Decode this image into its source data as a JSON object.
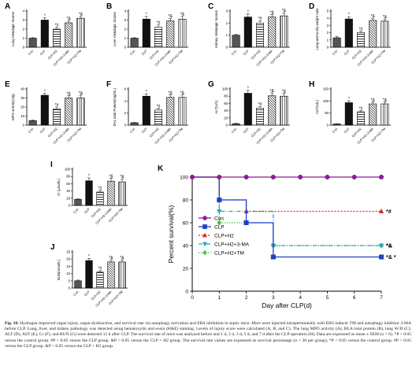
{
  "panels": [
    {
      "letter": "A",
      "ylabel": "Lung Histologic Scores",
      "ylim": [
        0,
        4
      ],
      "yticks": [
        0,
        1,
        2,
        3,
        4
      ],
      "categories": [
        "Con",
        "CLP",
        "CLP+H2",
        "CLP+H2+3-MA",
        "CLP+H2+TM"
      ],
      "values": [
        1.0,
        3.0,
        2.0,
        2.7,
        3.2
      ],
      "errors": [
        0.05,
        0.25,
        0.2,
        0.25,
        0.2
      ],
      "marks": [
        "",
        "*",
        "*#",
        "*&",
        "*&"
      ]
    },
    {
      "letter": "B",
      "ylabel": "Liver Histologic Scores",
      "ylim": [
        0,
        4
      ],
      "yticks": [
        0,
        1,
        2,
        3,
        4
      ],
      "categories": [
        "Con",
        "CLP",
        "CLP+H2",
        "CLP+H2+3-MA",
        "CLP+H2+TM"
      ],
      "values": [
        1.0,
        3.1,
        2.2,
        2.9,
        3.1
      ],
      "errors": [
        0.05,
        0.3,
        0.25,
        0.3,
        0.3
      ],
      "marks": [
        "",
        "*",
        "*#",
        "*&",
        "*&"
      ]
    },
    {
      "letter": "C",
      "ylabel": "Kidney Histologic Scores",
      "ylim": [
        0,
        3
      ],
      "yticks": [
        0,
        1,
        2,
        3
      ],
      "categories": [
        "Con",
        "CLP",
        "CLP+H2",
        "CLP+H2+3-MA",
        "CLP+H2+TM"
      ],
      "values": [
        1.0,
        2.5,
        2.0,
        2.5,
        2.6
      ],
      "errors": [
        0.05,
        0.25,
        0.2,
        0.2,
        0.25
      ],
      "marks": [
        "",
        "*",
        "*#",
        "*&",
        "*&"
      ]
    },
    {
      "letter": "D",
      "ylabel": "Lung wet-to-dry weight ratio",
      "ylim": [
        0,
        5
      ],
      "yticks": [
        0,
        1,
        2,
        3,
        4,
        5
      ],
      "categories": [
        "Con",
        "CLP",
        "CLP+H2",
        "CLP+H2+3-MA",
        "CLP+H2+TM"
      ],
      "values": [
        1.3,
        3.9,
        2.0,
        3.7,
        3.6
      ],
      "errors": [
        0.2,
        0.3,
        0.2,
        0.3,
        0.3
      ],
      "marks": [
        "",
        "*",
        "*#",
        "*&",
        "*&"
      ]
    },
    {
      "letter": "E",
      "ylabel": "MPO activity(U/g)",
      "ylim": [
        0,
        40
      ],
      "yticks": [
        0,
        10,
        20,
        30,
        40
      ],
      "categories": [
        "Con",
        "CLP",
        "CLP+H2",
        "CLP+H2+3-MA",
        "CLP+H2+TM"
      ],
      "values": [
        5,
        33,
        18,
        30,
        30
      ],
      "errors": [
        0.5,
        2,
        2,
        2.5,
        3
      ],
      "marks": [
        "",
        "*",
        "*#",
        "*&",
        "*&"
      ]
    },
    {
      "letter": "F",
      "ylabel": "BAL total Protein(mg/mL)",
      "ylim": [
        0,
        6
      ],
      "yticks": [
        0,
        2,
        4,
        6
      ],
      "categories": [
        "Con",
        "CLP",
        "CLP+H2",
        "CLP+H2+3-MA",
        "CLP+H2+TM"
      ],
      "values": [
        0.4,
        4.8,
        2.5,
        4.6,
        4.6
      ],
      "errors": [
        0.05,
        0.4,
        0.3,
        0.4,
        0.4
      ],
      "marks": [
        "",
        "*",
        "*#",
        "*&",
        "*&"
      ]
    },
    {
      "letter": "G",
      "ylabel": "ALT(U/L)",
      "ylim": [
        0,
        100
      ],
      "yticks": [
        0,
        20,
        40,
        60,
        80,
        100
      ],
      "categories": [
        "Con",
        "CLP",
        "CLP+H2",
        "CLP+H2+3-MA",
        "CLP+H2+TM"
      ],
      "values": [
        4,
        88,
        47,
        81,
        80
      ],
      "errors": [
        1,
        8,
        5,
        8,
        8
      ],
      "marks": [
        "",
        "*",
        "*#",
        "*&",
        "*&"
      ]
    },
    {
      "letter": "H",
      "ylabel": "AST(U/L)",
      "ylim": [
        0,
        150
      ],
      "yticks": [
        0,
        50,
        100,
        150
      ],
      "categories": [
        "Con",
        "CLP",
        "CLP+H2",
        "CLP+H2+3-MA",
        "CLP+H2+TM"
      ],
      "values": [
        5,
        93,
        55,
        88,
        88
      ],
      "errors": [
        1,
        8,
        5,
        8,
        8
      ],
      "marks": [
        "",
        "*",
        "*#",
        "*&",
        "*&"
      ]
    },
    {
      "letter": "I",
      "ylabel": "Cr (μmol/L)",
      "ylim": [
        0,
        100
      ],
      "yticks": [
        0,
        20,
        40,
        60,
        80,
        100
      ],
      "categories": [
        "Con",
        "CLP",
        "CLP+H2",
        "CLP+H2+3-MA",
        "CLP+H2+TM"
      ],
      "values": [
        17,
        68,
        37,
        67,
        65
      ],
      "errors": [
        1,
        8,
        5,
        8,
        8
      ],
      "marks": [
        "",
        "*",
        "*#",
        "*&",
        "*&"
      ]
    },
    {
      "letter": "J",
      "ylabel": "BUN(mmol/L)",
      "ylim": [
        0,
        25
      ],
      "yticks": [
        0,
        5,
        10,
        15,
        20,
        25
      ],
      "categories": [
        "Con",
        "CLP",
        "CLP+H2",
        "CLP+H2+3-MA",
        "CLP+H2+TM"
      ],
      "values": [
        5,
        19,
        11,
        18,
        18
      ],
      "errors": [
        0.5,
        1.5,
        1,
        1.5,
        1.5
      ],
      "marks": [
        "",
        "*",
        "*#",
        "*&",
        "*&"
      ]
    }
  ],
  "survival": {
    "letter": "K",
    "ylabel": "Percent survival(%)",
    "xlabel": "Day after CLP(d)",
    "xlim": [
      0,
      7
    ],
    "xticks": [
      0,
      1,
      2,
      3,
      4,
      5,
      6,
      7
    ],
    "ylim": [
      0,
      100
    ],
    "yticks": [
      0,
      20,
      40,
      60,
      80,
      100
    ],
    "series": [
      {
        "name": "Con",
        "color": "#8a1f8f",
        "dash": "",
        "marker": "circle",
        "points": [
          [
            0,
            100
          ],
          [
            1,
            100
          ],
          [
            2,
            100
          ],
          [
            3,
            100
          ],
          [
            4,
            100
          ],
          [
            5,
            100
          ],
          [
            6,
            100
          ],
          [
            7,
            100
          ]
        ],
        "mark": ""
      },
      {
        "name": "CLP",
        "color": "#1f3fcc",
        "dash": "",
        "marker": "square",
        "points": [
          [
            0,
            100
          ],
          [
            1,
            80
          ],
          [
            2,
            60
          ],
          [
            3,
            30
          ],
          [
            7,
            30
          ]
        ],
        "mark": "*&  *"
      },
      {
        "name": "CLP+H2",
        "color": "#d42a2a",
        "dash": "2,2",
        "marker": "triangle",
        "points": [
          [
            0,
            100
          ],
          [
            1,
            80
          ],
          [
            2,
            70
          ],
          [
            7,
            70
          ]
        ],
        "mark": "*#"
      },
      {
        "name": "CLP+H2+3-MA",
        "color": "#2aa7b8",
        "dash": "5,2,1,2",
        "marker": "tri-down",
        "points": [
          [
            0,
            100
          ],
          [
            1,
            70
          ],
          [
            3,
            40
          ],
          [
            7,
            40
          ]
        ],
        "mark": "*&"
      },
      {
        "name": "CLP+H2+TM",
        "color": "#4fc24f",
        "dash": "1.5,1.5",
        "marker": "diamond",
        "points": [
          [
            0,
            100
          ],
          [
            1,
            60
          ],
          [
            3,
            40
          ],
          [
            7,
            40
          ]
        ],
        "mark": "*&"
      }
    ]
  },
  "caption": {
    "title": "Fig. 10.",
    "text": "Hydrogen improved organ injury, organ dysfunction, and survival rate via autophagy activation and ERS inhibition in septic mice. Mice were injected intraperitoneally with ERS inducer TM and autophagy inhibitor 3-MA before CLP. Lung, liver, and kidney pathology was detected using hematoxylin and eosin (H&E) staining. Levels of injury score were calculated (A, B, and C). The lung MPO activity (A), BLA total protein (B), lung W/D (C), ALT (D), AST (E), Cr (F), and BUN (G) were detected 12 h after CLP. The survival rate of mice was analyzed before and 1 d, 2 d, 3 d, 5 d, and 7 d after the CLP operation (H). Data are expressed as mean ± SEM (n = 6). *P < 0.05 versus the control group. #P < 0.05 versus the CLP group. &P < 0.05 versus the CLP + H2 group. The survival rate values are expressed as survival percentage (n = 20 per group), *P < 0.05 versus the control group. #P < 0.05 versus the CLP group. &P < 0.05 versus the CLP + H2 group."
  },
  "colors": {
    "bar_fill": "#ffffff",
    "con_fill": "#555555",
    "clp_fill": "#111111",
    "axis": "#000000"
  }
}
